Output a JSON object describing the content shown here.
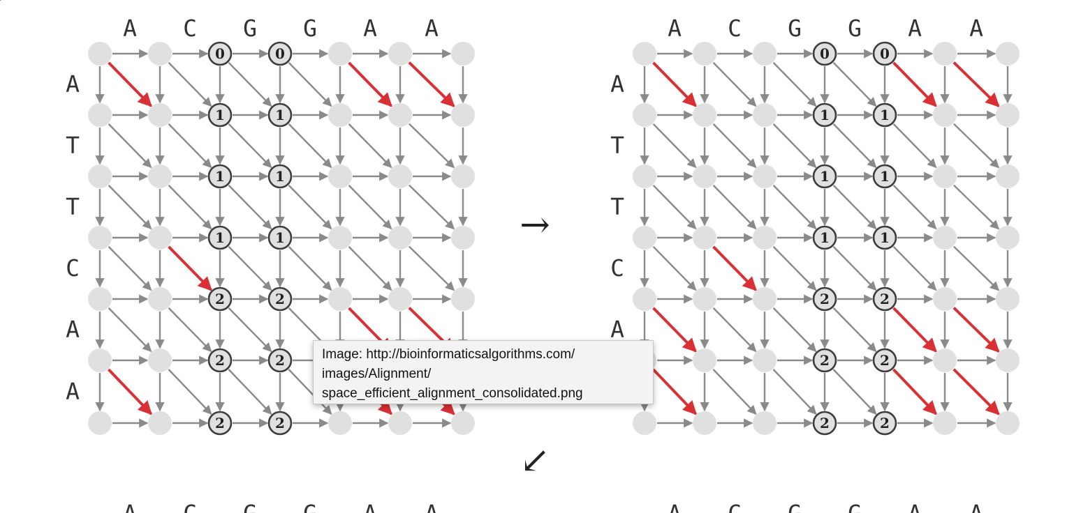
{
  "sequences": {
    "top": [
      "A",
      "C",
      "G",
      "G",
      "A",
      "A"
    ],
    "side": [
      "A",
      "T",
      "T",
      "C",
      "A",
      "A"
    ]
  },
  "colors": {
    "node_fill": "#e0e0e0",
    "edge": "#8a8a8a",
    "highlight_edge": "#d93035",
    "middle_node_stroke": "#3c3c3c"
  },
  "grids": [
    {
      "name": "left",
      "middle_columns": [
        2,
        3
      ],
      "middle_values": [
        [
          "0",
          "0"
        ],
        [
          "1",
          "1"
        ],
        [
          "1",
          "1"
        ],
        [
          "1",
          "1"
        ],
        [
          "2",
          "2"
        ],
        [
          "2",
          "2"
        ],
        [
          "2",
          "2"
        ]
      ],
      "highlighted_diagonals": [
        [
          0,
          0
        ],
        [
          0,
          4
        ],
        [
          0,
          5
        ],
        [
          3,
          1
        ],
        [
          4,
          4
        ],
        [
          4,
          5
        ],
        [
          5,
          0
        ],
        [
          5,
          4
        ],
        [
          5,
          5
        ],
        [
          6,
          0
        ]
      ]
    },
    {
      "name": "right",
      "middle_columns": [
        3,
        4
      ],
      "middle_values": [
        [
          "0",
          "0"
        ],
        [
          "1",
          "1"
        ],
        [
          "1",
          "1"
        ],
        [
          "1",
          "1"
        ],
        [
          "2",
          "2"
        ],
        [
          "2",
          "2"
        ],
        [
          "2",
          "2"
        ]
      ],
      "highlighted_diagonals": [
        [
          0,
          0
        ],
        [
          0,
          4
        ],
        [
          0,
          5
        ],
        [
          3,
          1
        ],
        [
          4,
          0
        ],
        [
          4,
          4
        ],
        [
          4,
          5
        ],
        [
          5,
          0
        ],
        [
          5,
          4
        ],
        [
          5,
          5
        ]
      ]
    }
  ],
  "flow_arrows": {
    "right": "→",
    "down_left": "↙"
  },
  "tooltip": {
    "lines": [
      "Image: http://bioinformaticsalgorithms.com/",
      "images/Alignment/",
      "space_efficient_alignment_consolidated.png"
    ]
  }
}
